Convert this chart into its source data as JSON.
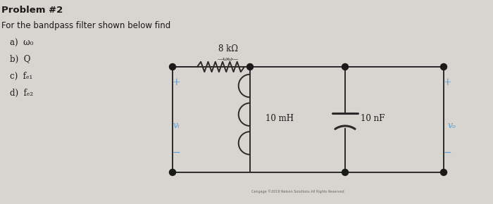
{
  "title": "Problem #2",
  "subtitle": "For the bandpass filter shown below find",
  "items_a": "a)  ω₀",
  "items_b": "b)  Q",
  "items_c": "c)  fₑ₁",
  "items_d": "d)  fₑ₂",
  "resistor_label": "8 kΩ",
  "inductor_label": "10 mH",
  "capacitor_label": "10 nF",
  "vi_label": "vᵢ",
  "vo_label": "vₒ",
  "bg_color": "#d8d4d0",
  "wire_color": "#2a2a2a",
  "node_color": "#1a1a1a",
  "text_color": "#1a1a1a",
  "blue_color": "#5b9bd5"
}
